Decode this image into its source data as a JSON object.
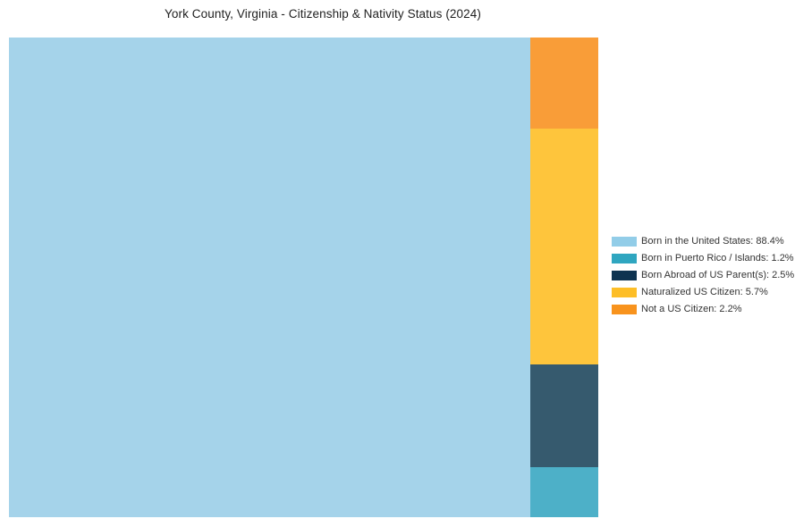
{
  "chart_data": {
    "type": "treemap",
    "title": "York County, Virginia - Citizenship & Nativity Status (2024)",
    "unit": "percent",
    "legend_position": "right",
    "slices": [
      {
        "label": "Born in the United States",
        "value": 88.4,
        "color": "#a5d3ea"
      },
      {
        "label": "Born in Puerto Rico / Islands",
        "value": 1.2,
        "color": "#4db0c8"
      },
      {
        "label": "Born Abroad of US Parent(s)",
        "value": 2.5,
        "color": "#365a6e"
      },
      {
        "label": "Naturalized US Citizen",
        "value": 5.7,
        "color": "#fec53c"
      },
      {
        "label": "Not a US Citizen",
        "value": 2.2,
        "color": "#f99d38"
      }
    ],
    "column_order_top_to_bottom": [
      "Not a US Citizen",
      "Naturalized US Citizen",
      "Born Abroad of US Parent(s)",
      "Born in Puerto Rico / Islands"
    ]
  },
  "legend": {
    "items": [
      {
        "text": "Born in the United States: 88.4%",
        "color": "#92cde8"
      },
      {
        "text": "Born in Puerto Rico / Islands: 1.2%",
        "color": "#2fa6c0"
      },
      {
        "text": "Born Abroad of US Parent(s): 2.5%",
        "color": "#0e3350"
      },
      {
        "text": "Naturalized US Citizen: 5.7%",
        "color": "#fdbe27"
      },
      {
        "text": "Not a US Citizen: 2.2%",
        "color": "#f8931d"
      }
    ]
  }
}
